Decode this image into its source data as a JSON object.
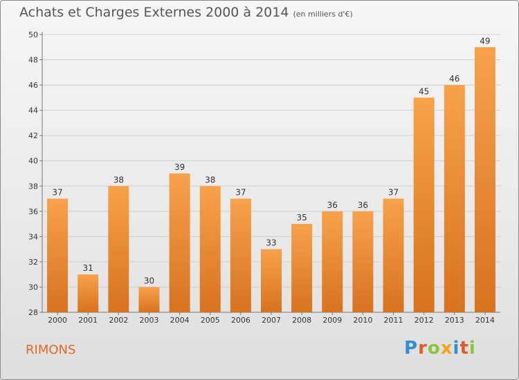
{
  "header": {
    "title": "Achats et Charges Externes 2000 à 2014",
    "subtitle": "(en milliers d'€)"
  },
  "footer": {
    "place": "RIMONS",
    "logo_text": "Proxiti"
  },
  "colors": {
    "bar_light": "#f7a24b",
    "bar_dark": "#d8721e",
    "grid": "#cfcfcf",
    "place_text": "#e06a28"
  },
  "chart_data": {
    "type": "bar",
    "title": "Achats et Charges Externes 2000 à 2014",
    "subtitle": "(en milliers d'€)",
    "categories": [
      "2000",
      "2001",
      "2002",
      "2003",
      "2004",
      "2005",
      "2006",
      "2007",
      "2008",
      "2009",
      "2010",
      "2011",
      "2012",
      "2013",
      "2014"
    ],
    "values": [
      37,
      31,
      38,
      30,
      39,
      38,
      37,
      33,
      35,
      36,
      36,
      37,
      45,
      46,
      49
    ],
    "xlabel": "",
    "ylabel": "",
    "ylim": [
      28,
      50
    ],
    "yticks": [
      28,
      30,
      32,
      34,
      36,
      38,
      40,
      42,
      44,
      46,
      48,
      50
    ],
    "grid": true,
    "data_labels": true,
    "legend": "none"
  }
}
